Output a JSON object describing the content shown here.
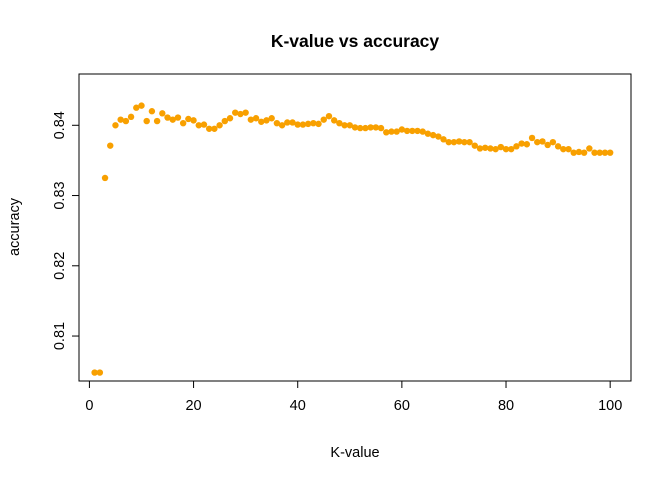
{
  "chart_data": {
    "type": "scatter",
    "title": "K-value vs accuracy",
    "xlabel": "K-value",
    "ylabel": "accuracy",
    "xlim": [
      -2,
      104
    ],
    "ylim": [
      0.8036,
      0.8473
    ],
    "xticks": [
      0,
      20,
      40,
      60,
      80,
      100
    ],
    "yticks": [
      0.81,
      0.82,
      0.83,
      0.84
    ],
    "xtick_labels": [
      "0",
      "20",
      "40",
      "60",
      "80",
      "100"
    ],
    "ytick_labels": [
      "0.81",
      "0.82",
      "0.83",
      "0.84"
    ],
    "grid": false,
    "legend": "none",
    "point_color": "#f8a000",
    "x": [
      1,
      2,
      3,
      4,
      5,
      6,
      7,
      8,
      9,
      10,
      11,
      12,
      13,
      14,
      15,
      16,
      17,
      18,
      19,
      20,
      21,
      22,
      23,
      24,
      25,
      26,
      27,
      28,
      29,
      30,
      31,
      32,
      33,
      34,
      35,
      36,
      37,
      38,
      39,
      40,
      41,
      42,
      43,
      44,
      45,
      46,
      47,
      48,
      49,
      50,
      51,
      52,
      53,
      54,
      55,
      56,
      57,
      58,
      59,
      60,
      61,
      62,
      63,
      64,
      65,
      66,
      67,
      68,
      69,
      70,
      71,
      72,
      73,
      74,
      75,
      76,
      77,
      78,
      79,
      80,
      81,
      82,
      83,
      84,
      85,
      86,
      87,
      88,
      89,
      90,
      91,
      92,
      93,
      94,
      95,
      96,
      97,
      98,
      99,
      100
    ],
    "y": [
      0.8048,
      0.8048,
      0.8325,
      0.8371,
      0.84,
      0.8408,
      0.8406,
      0.8412,
      0.8425,
      0.8428,
      0.8406,
      0.842,
      0.8406,
      0.8417,
      0.8411,
      0.8408,
      0.8411,
      0.8403,
      0.8409,
      0.8407,
      0.84,
      0.8401,
      0.8395,
      0.8395,
      0.84,
      0.8406,
      0.841,
      0.8418,
      0.8416,
      0.8418,
      0.8408,
      0.841,
      0.8405,
      0.8407,
      0.841,
      0.8403,
      0.84,
      0.8404,
      0.8404,
      0.8401,
      0.8401,
      0.8402,
      0.8403,
      0.8402,
      0.8408,
      0.8413,
      0.8407,
      0.8403,
      0.84,
      0.84,
      0.8397,
      0.8396,
      0.8396,
      0.8397,
      0.8397,
      0.8396,
      0.839,
      0.8391,
      0.8391,
      0.8394,
      0.8392,
      0.8392,
      0.8392,
      0.8391,
      0.8388,
      0.8386,
      0.8384,
      0.838,
      0.8376,
      0.8376,
      0.8377,
      0.8376,
      0.8376,
      0.8371,
      0.8367,
      0.8368,
      0.8367,
      0.8366,
      0.8369,
      0.8366,
      0.8366,
      0.837,
      0.8374,
      0.8373,
      0.8382,
      0.8376,
      0.8377,
      0.8372,
      0.8376,
      0.837,
      0.8366,
      0.8366,
      0.8361,
      0.8362,
      0.8361,
      0.8367,
      0.8361,
      0.8361,
      0.8361,
      0.8361
    ]
  }
}
